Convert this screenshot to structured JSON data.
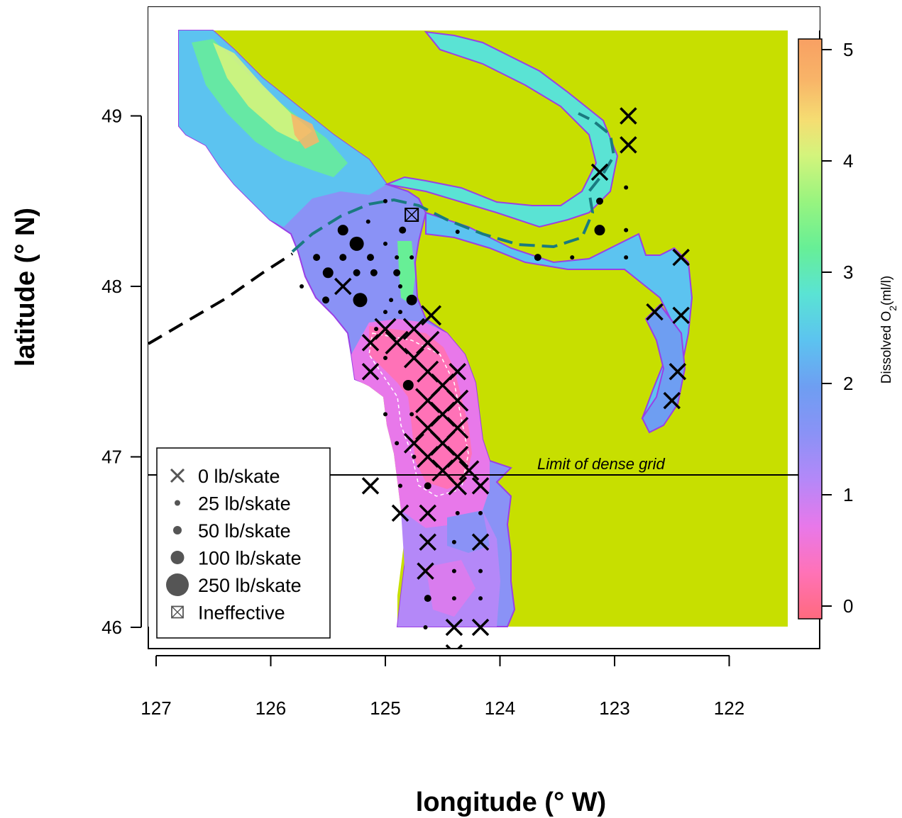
{
  "chart_data": {
    "type": "map",
    "x_axis": {
      "title": "longitude (° W)",
      "ticks": [
        "127",
        "126",
        "125",
        "124",
        "123",
        "122"
      ],
      "range_deg_w": [
        127.08,
        121.23
      ]
    },
    "y_axis": {
      "title": "latitude (° N)",
      "ticks": [
        "49",
        "48",
        "47",
        "46"
      ],
      "range_deg_n": [
        45.87,
        49.63
      ]
    },
    "colorbar": {
      "title": "Dissolved O",
      "title_sub": "2",
      "title_units": "(ml/l)",
      "ticks": [
        "5",
        "4",
        "3",
        "2",
        "1",
        "0"
      ],
      "range": [
        -0.1,
        5.1
      ],
      "colors": [
        "#FF6A7E",
        "#FF6F9A",
        "#FF72B7",
        "#FA74D3",
        "#E878EA",
        "#CE80F6",
        "#B488F8",
        "#9C8FF7",
        "#8A92F6",
        "#7B96F4",
        "#6E9EF2",
        "#63AEF1",
        "#5CC3F0",
        "#59D6EA",
        "#5AE3D4",
        "#5DEAB5",
        "#67EF96",
        "#7CF285",
        "#98F47F",
        "#B7F47E",
        "#D4F47C",
        "#EAEE79",
        "#F5DD72",
        "#F8C86C",
        "#F8B468",
        "#F8A063"
      ]
    },
    "land_color": "#C7DF00",
    "legend": {
      "placement": "bottom-left",
      "items": [
        {
          "symbol": "x",
          "label": "0 lb/skate"
        },
        {
          "symbol": "dot",
          "size": 1,
          "label": "25 lb/skate"
        },
        {
          "symbol": "dot",
          "size": 2,
          "label": "50 lb/skate"
        },
        {
          "symbol": "dot",
          "size": 3,
          "label": "100 lb/skate"
        },
        {
          "symbol": "dot",
          "size": 4,
          "label": "250 lb/skate"
        },
        {
          "symbol": "boxx",
          "label": "Ineffective"
        }
      ]
    },
    "annotations": {
      "dense_grid_label": "Limit of dense grid",
      "dense_grid_lat": 46.9
    },
    "catch_points": [
      {
        "lon": 125.6,
        "lat": 48.17,
        "v": 50
      },
      {
        "lon": 125.37,
        "lat": 48.17,
        "v": 50
      },
      {
        "lon": 125.13,
        "lat": 48.17,
        "v": 50
      },
      {
        "lon": 124.9,
        "lat": 48.17,
        "v": 25
      },
      {
        "lon": 124.77,
        "lat": 48.17,
        "v": 25
      },
      {
        "lon": 125.37,
        "lat": 48.33,
        "v": 100
      },
      {
        "lon": 125.25,
        "lat": 48.25,
        "v": 250
      },
      {
        "lon": 125.5,
        "lat": 48.08,
        "v": 100
      },
      {
        "lon": 125.25,
        "lat": 48.08,
        "v": 50
      },
      {
        "lon": 125.1,
        "lat": 48.08,
        "v": 50
      },
      {
        "lon": 125.0,
        "lat": 48.25,
        "v": 25
      },
      {
        "lon": 125.0,
        "lat": 48.5,
        "v": 25
      },
      {
        "lon": 124.85,
        "lat": 48.33,
        "v": 50
      },
      {
        "lon": 125.15,
        "lat": 48.38,
        "v": 25
      },
      {
        "lon": 125.22,
        "lat": 47.92,
        "v": 250
      },
      {
        "lon": 125.52,
        "lat": 47.92,
        "v": 50
      },
      {
        "lon": 125.73,
        "lat": 48.0,
        "v": 25
      },
      {
        "lon": 124.95,
        "lat": 47.92,
        "v": 25
      },
      {
        "lon": 124.77,
        "lat": 47.92,
        "v": 100
      },
      {
        "lon": 124.87,
        "lat": 48.0,
        "v": 25
      },
      {
        "lon": 124.9,
        "lat": 48.08,
        "v": 50
      },
      {
        "lon": 125.0,
        "lat": 47.85,
        "v": 25
      },
      {
        "lon": 124.87,
        "lat": 47.85,
        "v": 25
      },
      {
        "lon": 125.08,
        "lat": 47.75,
        "v": 25
      },
      {
        "lon": 125.0,
        "lat": 47.58,
        "v": 25
      },
      {
        "lon": 124.8,
        "lat": 47.42,
        "v": 100
      },
      {
        "lon": 124.75,
        "lat": 47.58,
        "v": 25
      },
      {
        "lon": 125.0,
        "lat": 47.25,
        "v": 25
      },
      {
        "lon": 124.77,
        "lat": 47.25,
        "v": 25
      },
      {
        "lon": 124.9,
        "lat": 47.08,
        "v": 25
      },
      {
        "lon": 124.75,
        "lat": 47.0,
        "v": 25
      },
      {
        "lon": 124.87,
        "lat": 46.83,
        "v": 25
      },
      {
        "lon": 124.63,
        "lat": 46.83,
        "v": 50
      },
      {
        "lon": 124.37,
        "lat": 46.67,
        "v": 25
      },
      {
        "lon": 124.4,
        "lat": 46.5,
        "v": 25
      },
      {
        "lon": 124.4,
        "lat": 46.33,
        "v": 25
      },
      {
        "lon": 124.17,
        "lat": 46.33,
        "v": 25
      },
      {
        "lon": 124.4,
        "lat": 46.17,
        "v": 25
      },
      {
        "lon": 124.17,
        "lat": 46.17,
        "v": 25
      },
      {
        "lon": 124.63,
        "lat": 46.17,
        "v": 50
      },
      {
        "lon": 124.65,
        "lat": 46.0,
        "v": 25
      },
      {
        "lon": 124.17,
        "lat": 46.83,
        "v": 25
      },
      {
        "lon": 124.17,
        "lat": 46.67,
        "v": 25
      },
      {
        "lon": 123.67,
        "lat": 48.17,
        "v": 50
      },
      {
        "lon": 123.37,
        "lat": 48.17,
        "v": 25
      },
      {
        "lon": 123.13,
        "lat": 48.33,
        "v": 100
      },
      {
        "lon": 123.13,
        "lat": 48.5,
        "v": 50
      },
      {
        "lon": 122.9,
        "lat": 48.33,
        "v": 25
      },
      {
        "lon": 122.9,
        "lat": 48.17,
        "v": 25
      },
      {
        "lon": 124.37,
        "lat": 48.32,
        "v": 25
      },
      {
        "lon": 122.9,
        "lat": 48.58,
        "v": 25
      }
    ],
    "zero_catch": [
      {
        "lon": 125.37,
        "lat": 48.0,
        "s": 1
      },
      {
        "lon": 124.6,
        "lat": 47.83,
        "s": 1.2
      },
      {
        "lon": 124.75,
        "lat": 47.75,
        "s": 1.3
      },
      {
        "lon": 125.0,
        "lat": 47.75,
        "s": 1.3
      },
      {
        "lon": 125.13,
        "lat": 47.67,
        "s": 1
      },
      {
        "lon": 124.9,
        "lat": 47.67,
        "s": 1.4
      },
      {
        "lon": 124.63,
        "lat": 47.67,
        "s": 1.4
      },
      {
        "lon": 124.75,
        "lat": 47.58,
        "s": 1.2
      },
      {
        "lon": 124.63,
        "lat": 47.5,
        "s": 1.3
      },
      {
        "lon": 124.37,
        "lat": 47.5,
        "s": 1
      },
      {
        "lon": 125.13,
        "lat": 47.5,
        "s": 1
      },
      {
        "lon": 124.5,
        "lat": 47.42,
        "s": 1.4
      },
      {
        "lon": 124.63,
        "lat": 47.33,
        "s": 1.5
      },
      {
        "lon": 124.37,
        "lat": 47.33,
        "s": 1.3
      },
      {
        "lon": 124.5,
        "lat": 47.25,
        "s": 1.5
      },
      {
        "lon": 124.63,
        "lat": 47.17,
        "s": 1.5
      },
      {
        "lon": 124.37,
        "lat": 47.17,
        "s": 1.3
      },
      {
        "lon": 124.5,
        "lat": 47.08,
        "s": 1.5
      },
      {
        "lon": 124.75,
        "lat": 47.08,
        "s": 1.2
      },
      {
        "lon": 124.63,
        "lat": 47.0,
        "s": 1.3
      },
      {
        "lon": 124.37,
        "lat": 47.0,
        "s": 1.3
      },
      {
        "lon": 124.5,
        "lat": 46.92,
        "s": 1.3
      },
      {
        "lon": 124.27,
        "lat": 46.92,
        "s": 1.2
      },
      {
        "lon": 124.37,
        "lat": 46.83,
        "s": 1.1
      },
      {
        "lon": 124.17,
        "lat": 46.83,
        "s": 1
      },
      {
        "lon": 125.13,
        "lat": 46.83,
        "s": 1
      },
      {
        "lon": 124.87,
        "lat": 46.67,
        "s": 1
      },
      {
        "lon": 124.63,
        "lat": 46.67,
        "s": 1
      },
      {
        "lon": 124.63,
        "lat": 46.5,
        "s": 1
      },
      {
        "lon": 124.17,
        "lat": 46.5,
        "s": 1
      },
      {
        "lon": 124.65,
        "lat": 46.33,
        "s": 1
      },
      {
        "lon": 124.4,
        "lat": 46.0,
        "s": 1
      },
      {
        "lon": 124.17,
        "lat": 46.0,
        "s": 1
      },
      {
        "lon": 122.88,
        "lat": 49.0,
        "s": 1
      },
      {
        "lon": 122.88,
        "lat": 48.83,
        "s": 1
      },
      {
        "lon": 123.13,
        "lat": 48.67,
        "s": 1
      },
      {
        "lon": 122.42,
        "lat": 48.17,
        "s": 1
      },
      {
        "lon": 122.65,
        "lat": 47.85,
        "s": 1
      },
      {
        "lon": 122.42,
        "lat": 47.83,
        "s": 1
      },
      {
        "lon": 122.45,
        "lat": 47.5,
        "s": 1
      },
      {
        "lon": 122.5,
        "lat": 47.33,
        "s": 1
      },
      {
        "lon": 124.4,
        "lat": 45.85,
        "s": 1
      }
    ],
    "ineffective": [
      {
        "lon": 124.77,
        "lat": 48.42
      }
    ]
  }
}
